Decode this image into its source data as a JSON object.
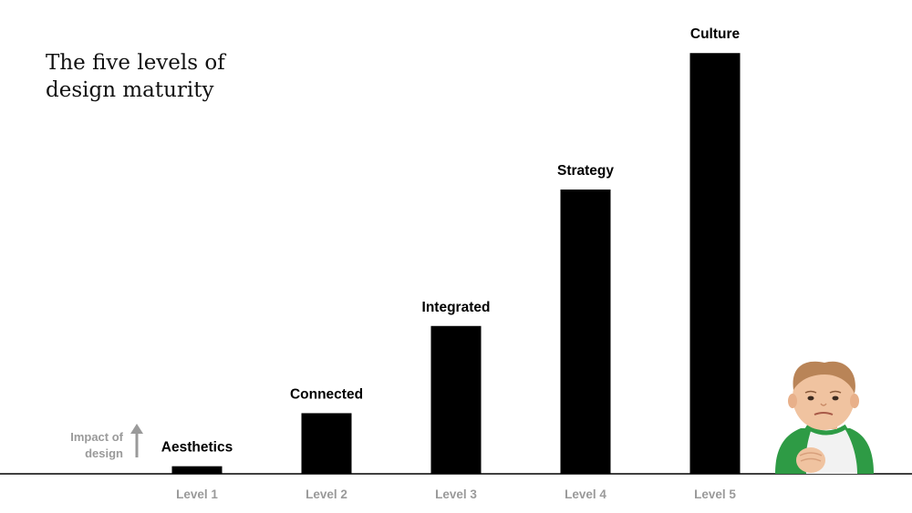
{
  "chart_data": {
    "type": "bar",
    "title_lines": [
      "The five levels of",
      "design maturity"
    ],
    "ylabel_lines": [
      "Impact of",
      "design"
    ],
    "categories": [
      "Level 1",
      "Level 2",
      "Level 3",
      "Level 4",
      "Level 5"
    ],
    "bar_labels": [
      "Aesthetics",
      "Connected",
      "Integrated",
      "Strategy",
      "Culture"
    ],
    "values": [
      2,
      16,
      39,
      75,
      111
    ],
    "ylim": [
      0,
      125
    ],
    "grid": false,
    "bar_color": "#000000",
    "tick_color": "#9a9a9a",
    "axis_color": "#000000"
  },
  "mascot": {
    "icon": "fist-pump-baby-illustration"
  }
}
